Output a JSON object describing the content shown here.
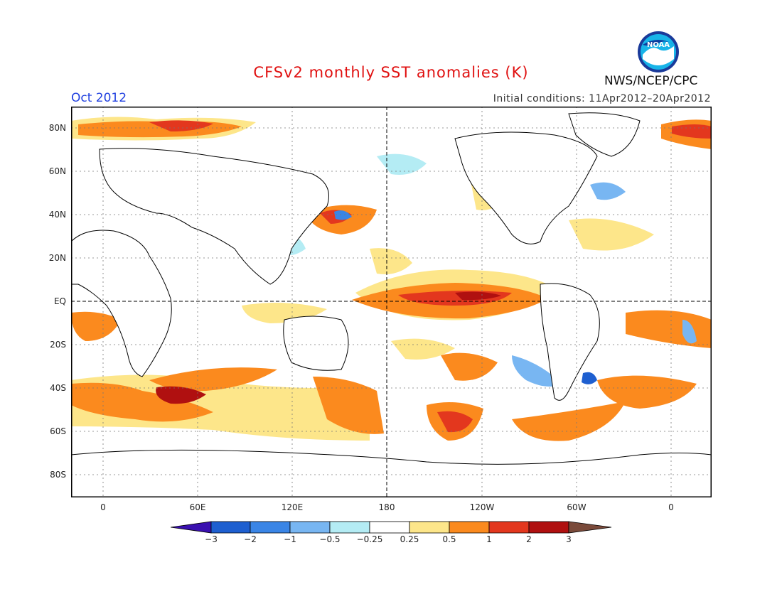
{
  "header": {
    "title": "CFSv2 monthly SST anomalies (K)",
    "date": "Oct 2012",
    "initial_conditions": "Initial conditions: 11Apr2012–20Apr2012",
    "agency": "NWS/NCEP/CPC",
    "logo_text": "NOAA"
  },
  "axes": {
    "lat_labels": [
      "80N",
      "60N",
      "40N",
      "20N",
      "EQ",
      "20S",
      "40S",
      "60S",
      "80S"
    ],
    "lon_labels": [
      "0",
      "60E",
      "120E",
      "180",
      "120W",
      "60W",
      "0"
    ]
  },
  "colorbar": {
    "labels": [
      "−3",
      "−2",
      "−1",
      "−0.5",
      "−0.25",
      "0.25",
      "0.5",
      "1",
      "2",
      "3"
    ],
    "colors": [
      "#3a10b0",
      "#1e5fd0",
      "#3a85e6",
      "#78b6f2",
      "#b4ecf4",
      "#ffffff",
      "#fde68a",
      "#fb8a1e",
      "#e3371e",
      "#b01010",
      "#7a4a3a"
    ]
  },
  "colors": {
    "title": "#e01010",
    "date": "#2040e0",
    "anomaly_light_pos": "#fde68a",
    "anomaly_orange": "#fb8a1e",
    "anomaly_red": "#e3371e",
    "anomaly_dark_red": "#b01010",
    "anomaly_light_neg": "#b4ecf4",
    "anomaly_blue": "#78b6f2",
    "anomaly_mid_blue": "#3a85e6"
  }
}
